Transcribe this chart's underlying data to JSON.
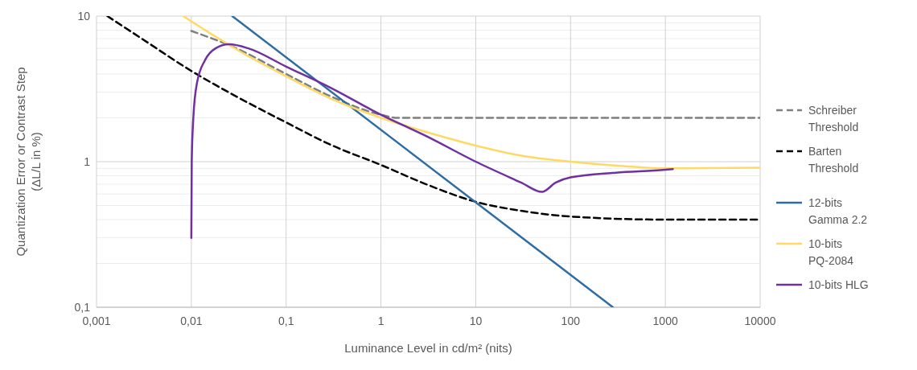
{
  "chart_data": {
    "type": "line",
    "ylabel": "Quantization Error or Contrast Step (ΔL/L in %)",
    "xlabel": "Luminance Level in cd/m² (nits)",
    "log": "xy",
    "grid": true,
    "legend": "right",
    "xlim": [
      0.001,
      10000
    ],
    "xticks": [
      {
        "value": 0.001,
        "label": "0,001"
      },
      {
        "value": 0.01,
        "label": "0,01"
      },
      {
        "value": 0.1,
        "label": "0,1"
      },
      1,
      10,
      100,
      1000,
      10000
    ],
    "ylim": [
      0.1,
      10
    ],
    "yticks": [
      {
        "value": 0.1,
        "label": "0,1"
      },
      1,
      10
    ],
    "series": [
      {
        "name": "Schreiber Threshold",
        "color": "#7f7f7f",
        "line_style": "dashed",
        "x": [
          0.01,
          0.03,
          0.1,
          0.3,
          1,
          1.5,
          10,
          100,
          1000,
          10000
        ],
        "values": [
          7.9,
          6.0,
          4.0,
          2.8,
          2.1,
          2.0,
          2.0,
          2.0,
          2.0,
          2.0
        ]
      },
      {
        "name": "Barten Threshold",
        "color": "#000000",
        "line_style": "dashed",
        "x": [
          0.0013,
          0.003,
          0.01,
          0.03,
          0.1,
          0.3,
          1,
          3,
          10,
          30,
          100,
          1000,
          10000
        ],
        "values": [
          10,
          7.0,
          4.2,
          2.8,
          1.86,
          1.3,
          0.95,
          0.7,
          0.53,
          0.46,
          0.42,
          0.4,
          0.4
        ]
      },
      {
        "name": "12-bits Gamma 2.2",
        "color": "#2e6da4",
        "line_style": "solid",
        "x": [
          0.027,
          280
        ],
        "values": [
          10,
          0.1
        ]
      },
      {
        "name": "10-bits PQ-2084",
        "color": "#ffd966",
        "line_style": "solid",
        "x": [
          0.0082,
          0.03,
          0.1,
          0.3,
          1,
          3,
          10,
          30,
          100,
          300,
          1000,
          10000
        ],
        "values": [
          10,
          5.9,
          3.86,
          2.7,
          2.0,
          1.6,
          1.29,
          1.1,
          1.0,
          0.94,
          0.9,
          0.91
        ]
      },
      {
        "name": "10-bits HLG",
        "color": "#7030a0",
        "line_style": "solid",
        "x": [
          0.01,
          0.0101,
          0.0105,
          0.0115,
          0.014,
          0.018,
          0.025,
          0.04,
          0.1,
          0.3,
          1,
          3,
          10,
          30,
          50,
          70,
          100,
          300,
          1000,
          1200
        ],
        "values": [
          0.3,
          1.0,
          2.0,
          3.5,
          5.0,
          6.0,
          6.4,
          6.0,
          4.5,
          3.2,
          2.1,
          1.5,
          1.0,
          0.72,
          0.62,
          0.72,
          0.78,
          0.84,
          0.88,
          0.89
        ]
      }
    ]
  }
}
